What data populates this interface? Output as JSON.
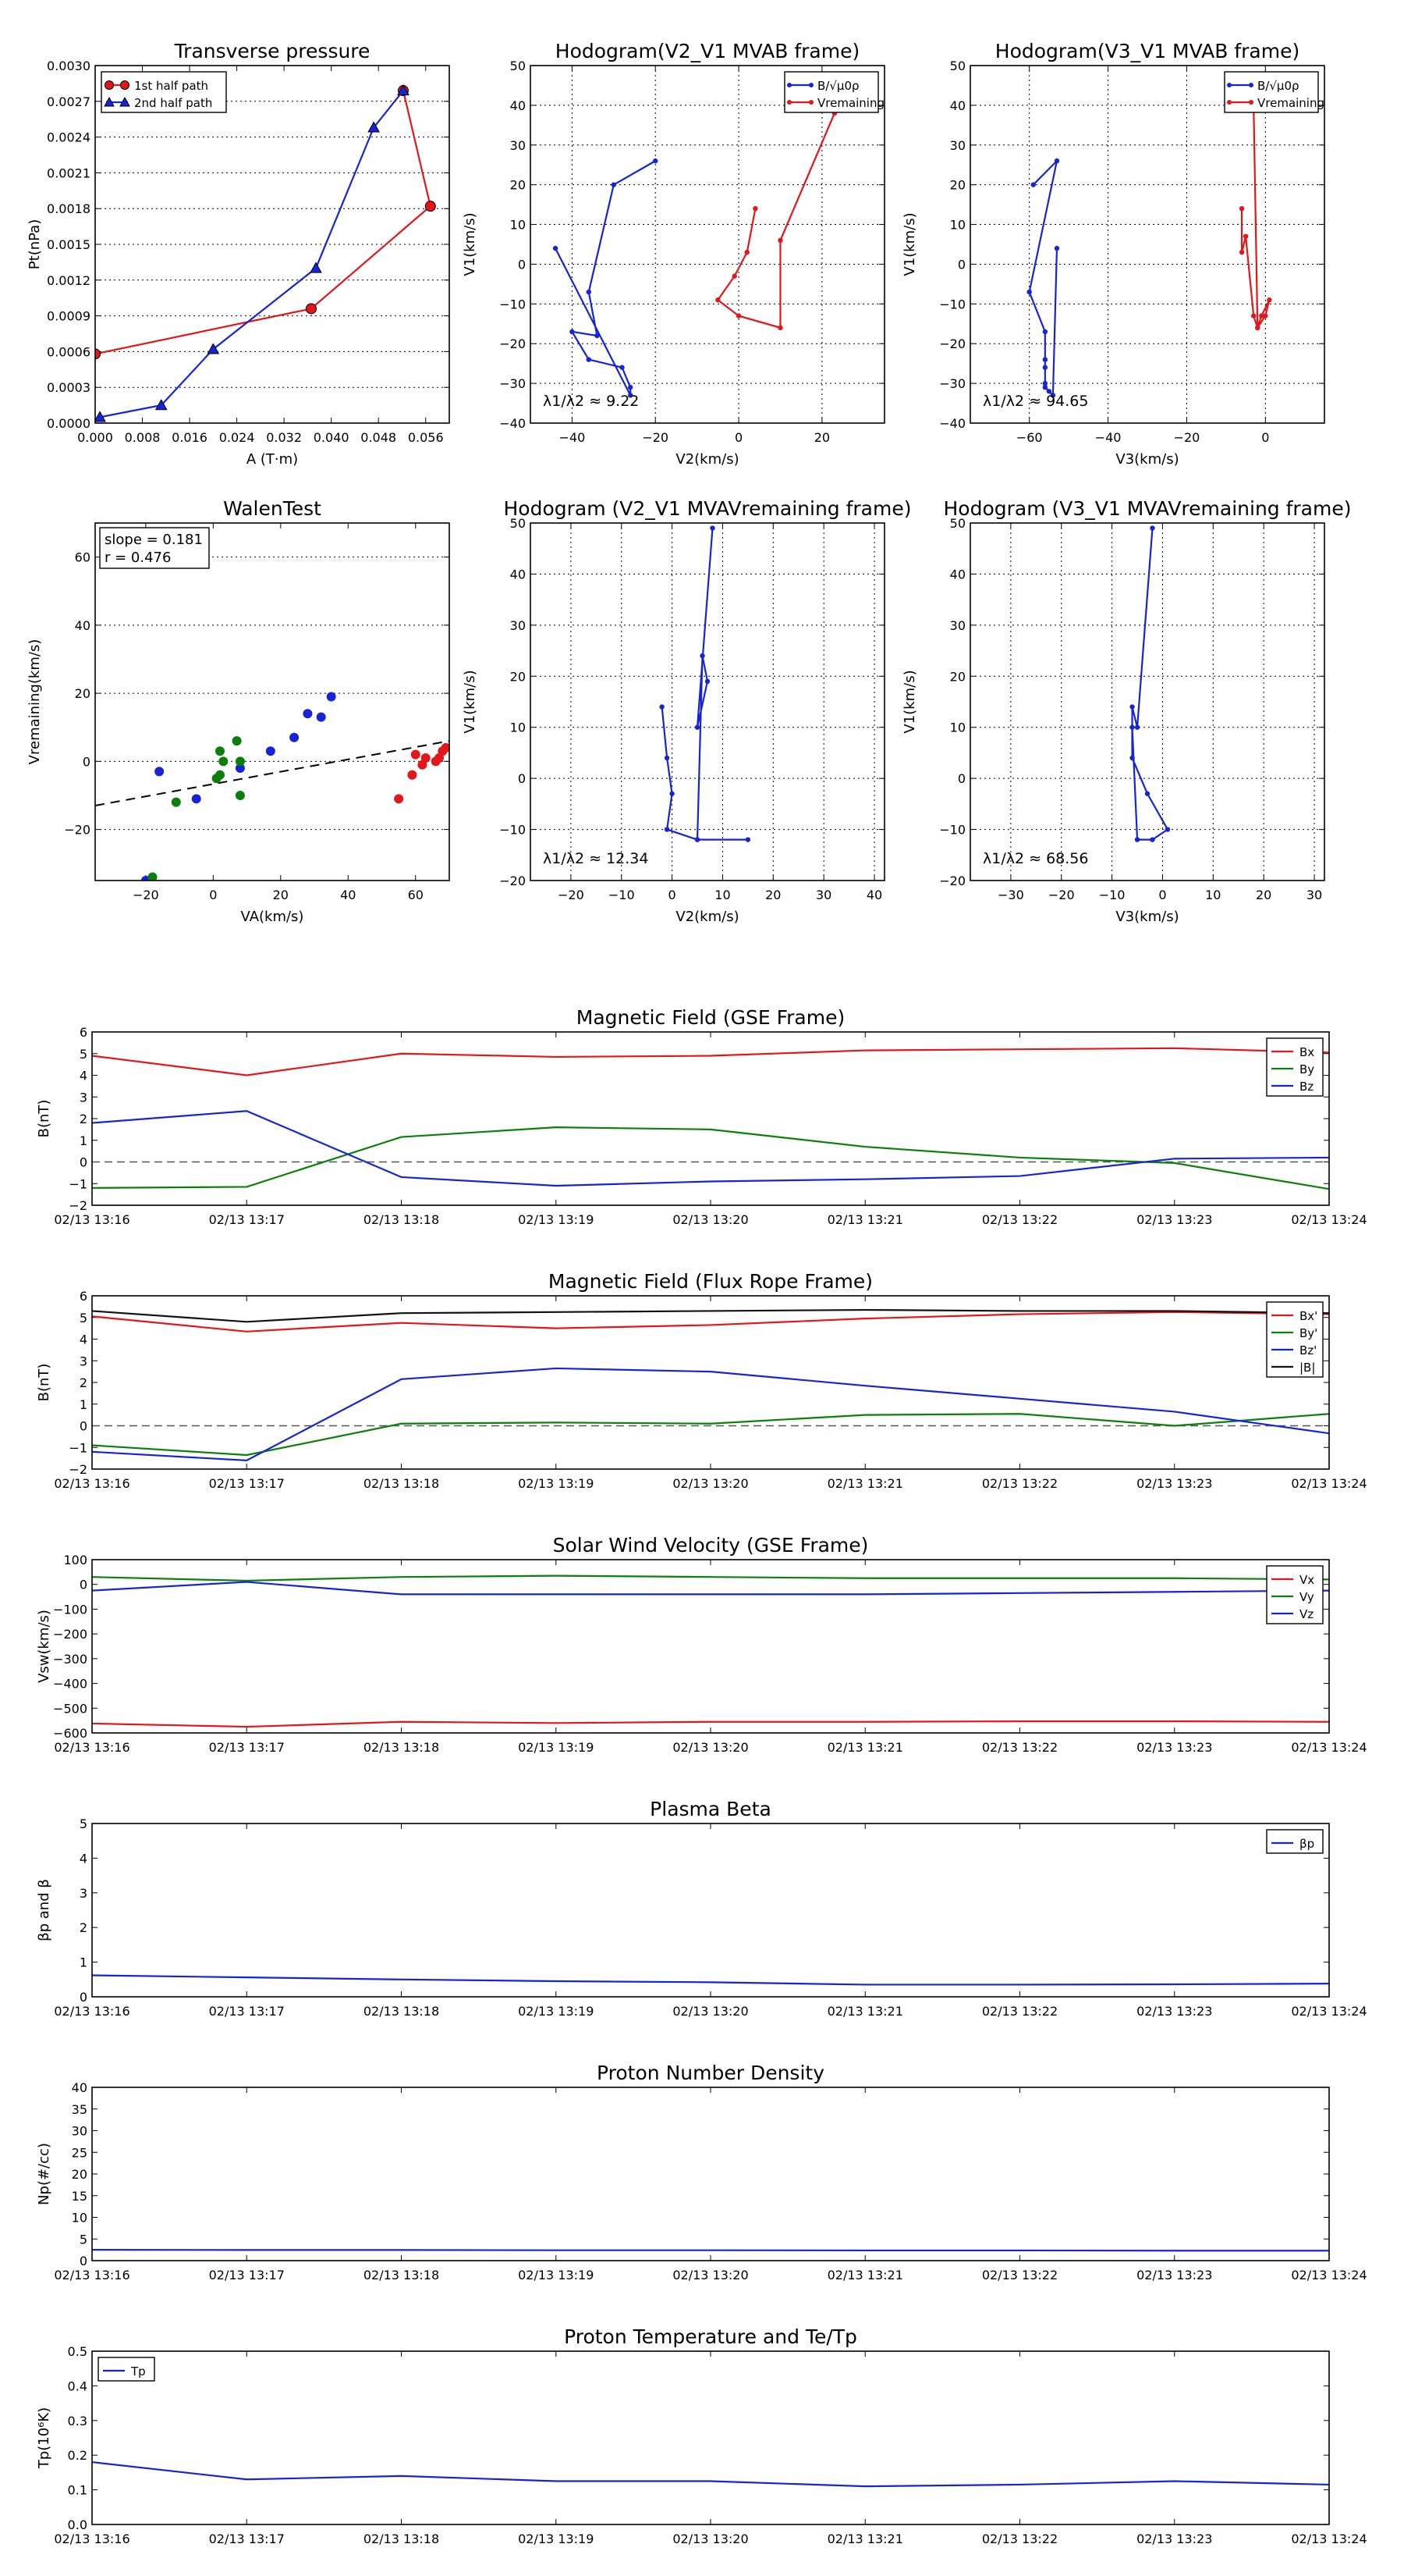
{
  "colors": {
    "red": "#e3161a",
    "blue": "#1624d6",
    "green": "#0a800a",
    "black": "#111111"
  },
  "chart_data": [
    {
      "type": "line",
      "title": "Transverse pressure",
      "xlabel": "A (T·m)",
      "ylabel": "Pt(nPa)",
      "xlim": [
        0,
        0.06
      ],
      "ylim": [
        0,
        0.003
      ],
      "xticks": [
        "0.000",
        "0.008",
        "0.016",
        "0.024",
        "0.032",
        "0.040",
        "0.048",
        "0.056"
      ],
      "yticks": [
        "0.0000",
        "0.0003",
        "0.0006",
        "0.0009",
        "0.0012",
        "0.0015",
        "0.0018",
        "0.0021",
        "0.0024",
        "0.0027",
        "0.0030"
      ],
      "legend": {
        "position": "top-left",
        "entries": [
          "1st half path",
          "2nd half path"
        ]
      },
      "series": [
        {
          "name": "1st half path",
          "color": "red",
          "marker": "circle",
          "x": [
            0.0,
            0.0366,
            0.0568,
            0.0522
          ],
          "y": [
            0.00058,
            0.00096,
            0.00182,
            0.00279
          ]
        },
        {
          "name": "2nd half path",
          "color": "blue",
          "marker": "triangle",
          "x": [
            0.0522,
            0.0472,
            0.0374,
            0.02,
            0.0112,
            0.0008
          ],
          "y": [
            0.00279,
            0.00248,
            0.0013,
            0.00062,
            0.00015,
            5e-05
          ]
        }
      ]
    },
    {
      "type": "line",
      "title": "Hodogram(V2_V1 MVAB frame)",
      "xlabel": "V2(km/s)",
      "ylabel": "V1(km/s)",
      "xlim": [
        -50,
        35
      ],
      "ylim": [
        -40,
        50
      ],
      "xticks": [
        "−40",
        "−20",
        "0",
        "20"
      ],
      "yticks": [
        "−40",
        "−30",
        "−20",
        "−10",
        "0",
        "10",
        "20",
        "30",
        "40",
        "50"
      ],
      "annotation": "λ1/λ2 ≈ 9.22",
      "legend": {
        "position": "top-right",
        "entries": [
          "B/√μ0ρ",
          "Vremaining"
        ]
      },
      "series": [
        {
          "name": "B/√μ0ρ",
          "color": "blue",
          "x": [
            -20,
            -30,
            -36,
            -34,
            -40,
            -36,
            -28,
            -26,
            -26,
            -44
          ],
          "y": [
            26,
            20,
            -7,
            -18,
            -17,
            -24,
            -26,
            -31,
            -33,
            4
          ]
        },
        {
          "name": "Vremaining",
          "color": "red",
          "x": [
            4,
            2,
            -1,
            -5,
            0,
            10,
            10,
            23
          ],
          "y": [
            14,
            3,
            -3,
            -9,
            -13,
            -16,
            6,
            38
          ]
        }
      ]
    },
    {
      "type": "line",
      "title": "Hodogram(V3_V1 MVAB frame)",
      "xlabel": "V3(km/s)",
      "ylabel": "V1(km/s)",
      "xlim": [
        -75,
        15
      ],
      "ylim": [
        -40,
        50
      ],
      "xticks": [
        "−60",
        "−40",
        "−20",
        "0"
      ],
      "yticks": [
        "−40",
        "−30",
        "−20",
        "−10",
        "0",
        "10",
        "20",
        "30",
        "40",
        "50"
      ],
      "annotation": "λ1/λ2 ≈ 94.65",
      "legend": {
        "position": "top-right",
        "entries": [
          "B/√μ0ρ",
          "Vremaining"
        ]
      },
      "series": [
        {
          "name": "B/√μ0ρ",
          "color": "blue",
          "x": [
            -59,
            -53,
            -60,
            -56,
            -56,
            -56,
            -56,
            -56,
            -55,
            -54,
            -53
          ],
          "y": [
            20,
            26,
            -7,
            -17,
            -24,
            -26,
            -30,
            -31,
            -32,
            -33,
            4
          ]
        },
        {
          "name": "Vremaining",
          "color": "red",
          "x": [
            -6,
            -6,
            -5,
            -3,
            -2,
            -1,
            1,
            0,
            -2,
            -3
          ],
          "y": [
            14,
            3,
            7,
            -13,
            -16,
            -13,
            -9,
            -13,
            -16,
            40
          ]
        }
      ]
    },
    {
      "type": "scatter",
      "title": "WalenTest",
      "xlabel": "VA(km/s)",
      "ylabel": "Vremaining(km/s)",
      "xlim": [
        -35,
        70
      ],
      "ylim": [
        -35,
        70
      ],
      "xticks": [
        "−20",
        "0",
        "20",
        "40",
        "60"
      ],
      "yticks": [
        "−20",
        "0",
        "20",
        "40",
        "60"
      ],
      "annotation_lines": [
        "slope = 0.181",
        "r = 0.476"
      ],
      "fit_line": {
        "x": [
          -35,
          70
        ],
        "y": [
          -13,
          6
        ]
      },
      "series": [
        {
          "color": "blue",
          "x": [
            -16,
            -5,
            8,
            17,
            24,
            28,
            32,
            35,
            -20
          ],
          "y": [
            -3,
            -11,
            -2,
            3,
            7,
            14,
            13,
            19,
            -35
          ]
        },
        {
          "color": "green",
          "x": [
            -11,
            1,
            2,
            3,
            7,
            8,
            2,
            8,
            -18
          ],
          "y": [
            -12,
            -5,
            3,
            0,
            6,
            -10,
            -4,
            0,
            -34
          ]
        },
        {
          "color": "red",
          "x": [
            55,
            59,
            62,
            63,
            66,
            67,
            68,
            69,
            60
          ],
          "y": [
            -11,
            -4,
            -1,
            1,
            0,
            1,
            3,
            4,
            2
          ]
        }
      ]
    },
    {
      "type": "line",
      "title": "Hodogram (V2_V1 MVAVremaining frame)",
      "xlabel": "V2(km/s)",
      "ylabel": "V1(km/s)",
      "xlim": [
        -28,
        42
      ],
      "ylim": [
        -20,
        50
      ],
      "xticks": [
        "−20",
        "−10",
        "0",
        "10",
        "20",
        "30",
        "40"
      ],
      "yticks": [
        "−20",
        "−10",
        "0",
        "10",
        "20",
        "30",
        "40",
        "50"
      ],
      "annotation": "λ1/λ2 ≈ 12.34",
      "series": [
        {
          "color": "blue",
          "x": [
            8,
            5,
            7,
            6,
            5,
            15,
            5,
            -1,
            0,
            -1,
            -2
          ],
          "y": [
            49,
            10,
            19,
            24,
            -12,
            -12,
            -12,
            -10,
            -3,
            4,
            14
          ]
        }
      ]
    },
    {
      "type": "line",
      "title": "Hodogram (V3_V1 MVAVremaining frame)",
      "xlabel": "V3(km/s)",
      "ylabel": "V1(km/s)",
      "xlim": [
        -38,
        32
      ],
      "ylim": [
        -20,
        50
      ],
      "xticks": [
        "−30",
        "−20",
        "−10",
        "0",
        "10",
        "20",
        "30"
      ],
      "yticks": [
        "−20",
        "−10",
        "0",
        "10",
        "20",
        "30",
        "40",
        "50"
      ],
      "annotation": "λ1/λ2 ≈ 68.56",
      "series": [
        {
          "color": "blue",
          "x": [
            -2,
            -5,
            -6,
            -6,
            -3,
            1,
            -2,
            -5,
            -6
          ],
          "y": [
            49,
            10,
            14,
            4,
            -3,
            -10,
            -12,
            -12,
            10
          ]
        }
      ]
    },
    {
      "type": "line",
      "title": "Magnetic Field (GSE Frame)",
      "ylabel": "B(nT)",
      "ylim": [
        -2,
        6
      ],
      "yticks": [
        "−2",
        "−1",
        "0",
        "1",
        "2",
        "3",
        "4",
        "5",
        "6"
      ],
      "categories": [
        "02/13 13:16",
        "02/13 13:17",
        "02/13 13:18",
        "02/13 13:19",
        "02/13 13:20",
        "02/13 13:21",
        "02/13 13:22",
        "02/13 13:23",
        "02/13 13:24"
      ],
      "legend": {
        "position": "top-right"
      },
      "series": [
        {
          "name": "Bx",
          "color": "red",
          "values": [
            4.9,
            4.0,
            5.0,
            4.85,
            4.9,
            5.15,
            5.2,
            5.25,
            5.05
          ]
        },
        {
          "name": "By",
          "color": "green",
          "values": [
            -1.2,
            -1.15,
            1.15,
            1.6,
            1.5,
            0.7,
            0.2,
            -0.05,
            -1.25
          ]
        },
        {
          "name": "Bz",
          "color": "blue",
          "values": [
            1.8,
            2.35,
            -0.7,
            -1.1,
            -0.9,
            -0.8,
            -0.65,
            0.15,
            0.2
          ]
        }
      ]
    },
    {
      "type": "line",
      "title": "Magnetic Field (Flux Rope Frame)",
      "ylabel": "B(nT)",
      "ylim": [
        -2,
        6
      ],
      "yticks": [
        "−2",
        "−1",
        "0",
        "1",
        "2",
        "3",
        "4",
        "5",
        "6"
      ],
      "categories": [
        "02/13 13:16",
        "02/13 13:17",
        "02/13 13:18",
        "02/13 13:19",
        "02/13 13:20",
        "02/13 13:21",
        "02/13 13:22",
        "02/13 13:23",
        "02/13 13:24"
      ],
      "legend": {
        "position": "top-right"
      },
      "series": [
        {
          "name": "Bx'",
          "color": "red",
          "values": [
            5.05,
            4.35,
            4.75,
            4.5,
            4.65,
            4.95,
            5.15,
            5.25,
            5.15
          ]
        },
        {
          "name": "By'",
          "color": "green",
          "values": [
            -0.9,
            -1.35,
            0.1,
            0.15,
            0.1,
            0.5,
            0.55,
            0.0,
            0.55
          ]
        },
        {
          "name": "Bz'",
          "color": "blue",
          "values": [
            -1.2,
            -1.6,
            2.15,
            2.65,
            2.5,
            1.85,
            1.25,
            0.65,
            -0.35
          ]
        },
        {
          "name": "|B|",
          "color": "black",
          "values": [
            5.3,
            4.8,
            5.2,
            5.25,
            5.3,
            5.35,
            5.3,
            5.3,
            5.2
          ]
        }
      ]
    },
    {
      "type": "line",
      "title": "Solar Wind Velocity (GSE Frame)",
      "ylabel": "Vsw(km/s)",
      "ylim": [
        -600,
        100
      ],
      "yticks": [
        "−600",
        "−500",
        "−400",
        "−300",
        "−200",
        "−100",
        "0",
        "100"
      ],
      "categories": [
        "02/13 13:16",
        "02/13 13:17",
        "02/13 13:18",
        "02/13 13:19",
        "02/13 13:20",
        "02/13 13:21",
        "02/13 13:22",
        "02/13 13:23",
        "02/13 13:24"
      ],
      "legend": {
        "position": "top-right"
      },
      "series": [
        {
          "name": "Vx",
          "color": "red",
          "values": [
            -562,
            -575,
            -555,
            -560,
            -555,
            -555,
            -553,
            -553,
            -555
          ]
        },
        {
          "name": "Vy",
          "color": "green",
          "values": [
            30,
            15,
            30,
            35,
            30,
            25,
            25,
            25,
            20
          ]
        },
        {
          "name": "Vz",
          "color": "blue",
          "values": [
            -25,
            10,
            -40,
            -40,
            -40,
            -40,
            -35,
            -30,
            -25
          ]
        }
      ]
    },
    {
      "type": "line",
      "title": "Plasma Beta",
      "ylabel": "βp and β",
      "ylim": [
        0,
        5
      ],
      "yticks": [
        "0",
        "1",
        "2",
        "3",
        "4",
        "5"
      ],
      "categories": [
        "02/13 13:16",
        "02/13 13:17",
        "02/13 13:18",
        "02/13 13:19",
        "02/13 13:20",
        "02/13 13:21",
        "02/13 13:22",
        "02/13 13:23",
        "02/13 13:24"
      ],
      "legend": {
        "position": "top-right"
      },
      "series": [
        {
          "name": "βp",
          "color": "blue",
          "values": [
            0.62,
            0.56,
            0.5,
            0.45,
            0.42,
            0.35,
            0.35,
            0.36,
            0.38
          ]
        }
      ]
    },
    {
      "type": "line",
      "title": "Proton Number Density",
      "ylabel": "Np(#/cc)",
      "ylim": [
        0,
        40
      ],
      "yticks": [
        "0",
        "5",
        "10",
        "15",
        "20",
        "25",
        "30",
        "35",
        "40"
      ],
      "categories": [
        "02/13 13:16",
        "02/13 13:17",
        "02/13 13:18",
        "02/13 13:19",
        "02/13 13:20",
        "02/13 13:21",
        "02/13 13:22",
        "02/13 13:23",
        "02/13 13:24"
      ],
      "series": [
        {
          "color": "blue",
          "values": [
            2.5,
            2.45,
            2.45,
            2.4,
            2.4,
            2.35,
            2.35,
            2.3,
            2.3
          ]
        }
      ]
    },
    {
      "type": "line",
      "title": "Proton Temperature and Te/Tp",
      "ylabel": "Tp(10⁶K)",
      "ylim": [
        0,
        0.5
      ],
      "yticks": [
        "0.0",
        "0.1",
        "0.2",
        "0.3",
        "0.4",
        "0.5"
      ],
      "categories": [
        "02/13 13:16",
        "02/13 13:17",
        "02/13 13:18",
        "02/13 13:19",
        "02/13 13:20",
        "02/13 13:21",
        "02/13 13:22",
        "02/13 13:23",
        "02/13 13:24"
      ],
      "legend": {
        "position": "top-left"
      },
      "series": [
        {
          "name": "Tp",
          "color": "blue",
          "values": [
            0.18,
            0.13,
            0.14,
            0.125,
            0.125,
            0.11,
            0.115,
            0.125,
            0.115
          ]
        }
      ]
    }
  ]
}
